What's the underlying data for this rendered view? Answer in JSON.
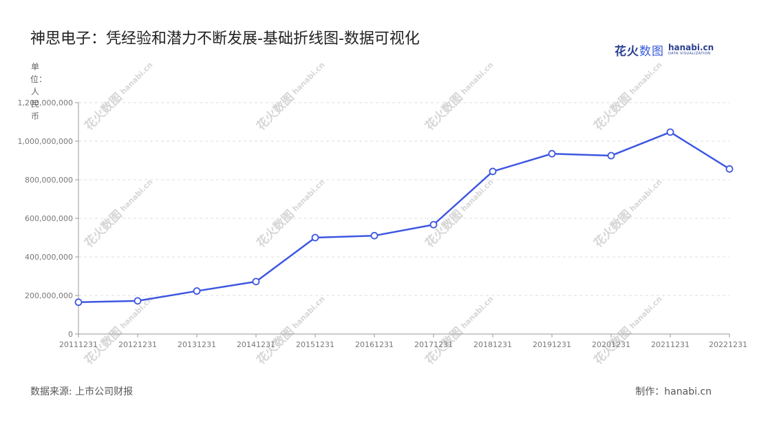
{
  "title": "神思电子：凭经验和潜力不断发展-基础折线图-数据可视化",
  "logo": {
    "cn_fire": "花火",
    "cn_shu": "数图",
    "en": "hanabi.cn",
    "sub": "DATA VISUALIZATION"
  },
  "unit_label": "单位：人民币",
  "source": "数据来源: 上市公司财报",
  "credit": "制作：hanabi.cn",
  "watermark": {
    "cn": "花火数图",
    "en": "hanabi.cn"
  },
  "colors": {
    "line": "#3d56e0",
    "grid": "#dddddd",
    "axis": "#999999",
    "tick_text": "#777777"
  },
  "chart_data": {
    "type": "line",
    "title": "神思电子：凭经验和潜力不断发展-基础折线图-数据可视化",
    "ylabel": "单位：人民币",
    "ylim": [
      0,
      1200000000
    ],
    "yticks": [
      0,
      200000000,
      400000000,
      600000000,
      800000000,
      1000000000,
      1200000000
    ],
    "ytick_labels": [
      "0",
      "200,000,000",
      "400,000,000",
      "600,000,000",
      "800,000,000",
      "1,000,000,000",
      "1,200,000,000"
    ],
    "grid": true,
    "categories": [
      "20111231",
      "20121231",
      "20131231",
      "20141231",
      "20151231",
      "20161231",
      "20171231",
      "20181231",
      "20191231",
      "20201231",
      "20211231",
      "20221231"
    ],
    "series": [
      {
        "values": [
          165000000,
          172000000,
          223000000,
          272000000,
          500000000,
          510000000,
          567000000,
          843000000,
          935000000,
          925000000,
          1047000000,
          856000000
        ]
      }
    ]
  }
}
